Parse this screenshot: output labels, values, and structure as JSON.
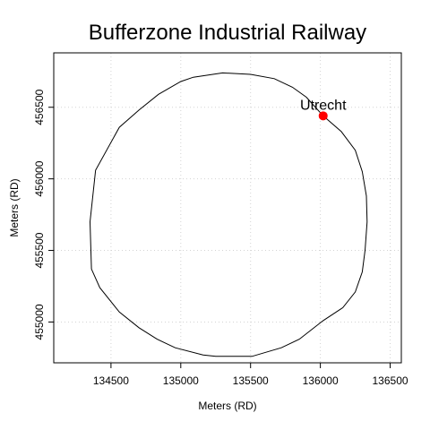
{
  "chart_data": {
    "type": "line",
    "title": "Bufferzone Industrial Railway",
    "xlabel": "Meters (RD)",
    "ylabel": "Meters (RD)",
    "xlim": [
      134090,
      136580
    ],
    "ylim": [
      454715,
      456880
    ],
    "xticks": [
      134500,
      135000,
      135500,
      136000,
      136500
    ],
    "yticks": [
      455000,
      455500,
      456000,
      456500
    ],
    "grid": true,
    "series": [
      {
        "type": "line",
        "color": "#000000",
        "x": [
          136020,
          136150,
          136250,
          136300,
          136330,
          136335,
          136320,
          136300,
          136250,
          136160,
          136020,
          135850,
          135720,
          135510,
          135250,
          135160,
          134960,
          134830,
          134700,
          134560,
          134420,
          134360,
          134350,
          134390,
          134560,
          134700,
          134840,
          135000,
          135090,
          135300,
          135500,
          135670,
          135800,
          135900,
          136020
        ],
        "y": [
          456440,
          456330,
          456200,
          456050,
          455880,
          455700,
          455500,
          455350,
          455210,
          455100,
          455010,
          454880,
          454820,
          454760,
          454760,
          454770,
          454820,
          454880,
          454960,
          455070,
          455240,
          455370,
          455700,
          456060,
          456360,
          456480,
          456590,
          456680,
          456710,
          456740,
          456730,
          456700,
          456640,
          456570,
          456440
        ]
      },
      {
        "type": "scatter",
        "name": "Utrecht",
        "color": "#ff0000",
        "x": [
          136020
        ],
        "y": [
          456440
        ]
      }
    ],
    "annotations": [
      {
        "text": "Utrecht",
        "x": 136020,
        "y": 456440
      }
    ]
  }
}
